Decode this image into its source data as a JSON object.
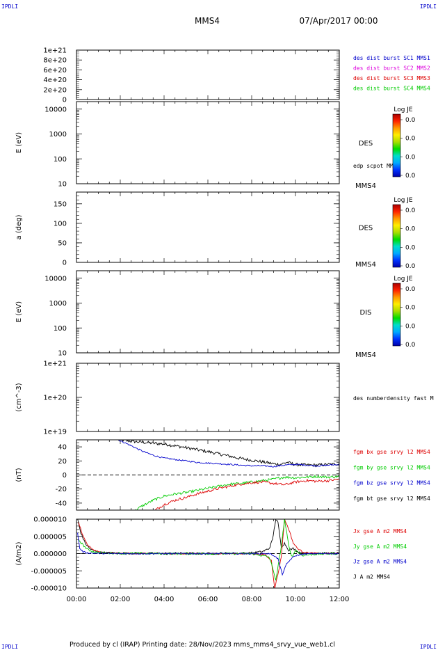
{
  "corner_marks": {
    "tl": "IPDLI",
    "tr": "IPDLI",
    "bl": "IPDLI",
    "br": "IPDLI"
  },
  "header": {
    "spacecraft": "MMS4",
    "date": "07/Apr/2017 00:00"
  },
  "footer": {
    "text": "Produced by cl (IRAP)   Printing date: 28/Nov/2023   mms_mms4_srvy_vue_web1.cl"
  },
  "colors": {
    "black": "#000000",
    "red": "#dd0000",
    "green": "#00cc00",
    "blue": "#0000cc",
    "magenta": "#dd00dd",
    "bg": "#ffffff"
  },
  "time_axis": {
    "start": "00:00",
    "end": "12:00",
    "ticks": [
      "00:00",
      "02:00",
      "04:00",
      "06:00",
      "08:00",
      "10:00",
      "12:00"
    ],
    "tick_hours": [
      0,
      2,
      4,
      6,
      8,
      10,
      12
    ]
  },
  "panel_order": [
    "dist",
    "des",
    "pa",
    "dis",
    "ndens",
    "bfield",
    "current"
  ],
  "colorbar_colors": [
    "#0000aa",
    "#0033ff",
    "#00aaff",
    "#00ddcc",
    "#00dd00",
    "#aadd00",
    "#ffee00",
    "#ff9900",
    "#ff2200",
    "#aa0000"
  ],
  "chart_data": [
    {
      "key": "dist",
      "type": "line",
      "scale": "linear",
      "ylim": [
        0,
        1e+21
      ],
      "ytick_values": [
        1e+21,
        8e+20,
        6e+20,
        4e+20,
        2e+20,
        0
      ],
      "ytick_labels": [
        "1e+21",
        "8e+20",
        "6e+20",
        "4e+20",
        "2e+20",
        "0"
      ],
      "ylabel": "",
      "zero_line": true,
      "legend": [
        {
          "name": "des dist burst SC1 MMS1",
          "color": "#0000cc"
        },
        {
          "name": "des dist burst SC2 MMS2",
          "color": "#dd00dd"
        },
        {
          "name": "des dist burst SC3 MMS3",
          "color": "#dd0000"
        },
        {
          "name": "des dist burst SC4 MMS4",
          "color": "#00cc00"
        }
      ],
      "series": []
    },
    {
      "key": "des",
      "type": "heatmap",
      "scale": "log",
      "ylim": [
        10,
        20000
      ],
      "ytick_values": [
        10000,
        1000,
        100,
        10
      ],
      "ytick_labels": [
        "10000",
        "1000",
        "100",
        "10"
      ],
      "ylabel": "E (eV)",
      "side_label": "DES",
      "side_note": "edp scpot MMS4",
      "sc_label": "MMS4",
      "colorbar": {
        "title": "Log JE",
        "ticks": [
          "0.0",
          "0.0",
          "0.0",
          "0.0"
        ]
      },
      "series": []
    },
    {
      "key": "pa",
      "type": "heatmap",
      "scale": "linear",
      "ylim": [
        0,
        180
      ],
      "ytick_values": [
        150,
        100,
        50,
        0
      ],
      "ytick_labels": [
        "150",
        "100",
        "50",
        "0"
      ],
      "ylabel": "a (deg)",
      "side_label": "DES",
      "sc_label": "MMS4",
      "colorbar": {
        "title": "Log JE",
        "ticks": [
          "0.0",
          "0.0",
          "0.0",
          "0.0"
        ]
      },
      "series": []
    },
    {
      "key": "dis",
      "type": "heatmap",
      "scale": "log",
      "ylim": [
        10,
        20000
      ],
      "ytick_values": [
        10000,
        1000,
        100,
        10
      ],
      "ytick_labels": [
        "10000",
        "1000",
        "100",
        "10"
      ],
      "ylabel": "E (eV)",
      "side_label": "DIS",
      "sc_label": "MMS4",
      "colorbar": {
        "title": "Log JE",
        "ticks": [
          "0.0",
          "0.0",
          "0.0",
          "0.0"
        ]
      },
      "series": []
    },
    {
      "key": "ndens",
      "type": "line",
      "scale": "log",
      "ylim": [
        1e+19,
        1e+21
      ],
      "ytick_values": [
        1e+21,
        1e+20,
        1e+19
      ],
      "ytick_labels": [
        "1e+21",
        "1e+20",
        "1e+19"
      ],
      "ylabel": "(cm^-3)",
      "legend": [
        {
          "name": "des numberdensity fast M",
          "color": "#000000"
        }
      ],
      "series": []
    },
    {
      "key": "bfield",
      "type": "line",
      "scale": "linear",
      "ylim": [
        -50,
        50
      ],
      "ytick_values": [
        40,
        20,
        0,
        -20,
        -40
      ],
      "ytick_labels": [
        "40",
        "20",
        "0",
        "-20",
        "-40"
      ],
      "ylabel": "(nT)",
      "zero_line": true,
      "legend": [
        {
          "name": "fgm bx gse srvy l2 MMS4",
          "color": "#dd0000"
        },
        {
          "name": "fgm by gse srvy l2 MMS4",
          "color": "#00cc00"
        },
        {
          "name": "fgm bz gse srvy l2 MMS4",
          "color": "#0000cc"
        },
        {
          "name": "fgm bt gse srvy l2 MMS4",
          "color": "#000000"
        }
      ],
      "series": [
        {
          "color": "#000000",
          "noise": 2.2,
          "x": [
            1.9,
            2.5,
            3.2,
            4.0,
            4.8,
            5.5,
            6.2,
            6.8,
            7.4,
            7.8,
            8.2,
            8.6,
            9.0,
            9.3,
            9.6,
            10.0,
            10.5,
            11.0,
            11.5,
            12.0
          ],
          "y": [
            50,
            48,
            46,
            44,
            40,
            36,
            32,
            28,
            24,
            22,
            20,
            18,
            16,
            15,
            18,
            15,
            14,
            14,
            15,
            16
          ]
        },
        {
          "color": "#0000cc",
          "noise": 1.0,
          "x": [
            1.9,
            2.2,
            2.6,
            3.0,
            3.5,
            4.0,
            4.5,
            5.0,
            5.5,
            6.0,
            6.5,
            7.0,
            7.5,
            8.0,
            8.5,
            9.0,
            9.5,
            10.0,
            10.5,
            11.0,
            11.5,
            12.0
          ],
          "y": [
            50,
            46,
            40,
            34,
            28,
            24,
            22,
            20,
            18,
            17,
            16,
            15,
            14,
            13,
            13,
            12,
            14,
            15,
            14,
            13,
            14,
            15
          ]
        },
        {
          "color": "#00cc00",
          "noise": 1.8,
          "x": [
            2.7,
            3.0,
            3.5,
            4.0,
            4.5,
            5.0,
            5.5,
            6.0,
            6.5,
            7.0,
            7.5,
            8.0,
            8.5,
            9.0,
            9.5,
            10.0,
            10.5,
            11.0,
            11.5,
            12.0
          ],
          "y": [
            -50,
            -44,
            -36,
            -30,
            -27,
            -25,
            -22,
            -19,
            -16,
            -13,
            -12,
            -10,
            -8,
            -6,
            -3,
            -4,
            -3,
            -2,
            -3,
            -2
          ]
        },
        {
          "color": "#dd0000",
          "noise": 1.8,
          "x": [
            3.6,
            4.0,
            4.5,
            5.0,
            5.5,
            6.0,
            6.5,
            7.0,
            7.5,
            8.0,
            8.5,
            9.0,
            9.5,
            10.0,
            10.5,
            11.0,
            11.5,
            12.0
          ],
          "y": [
            -50,
            -42,
            -36,
            -32,
            -27,
            -23,
            -19,
            -16,
            -13,
            -11,
            -10,
            -12,
            -14,
            -10,
            -8,
            -9,
            -8,
            -6
          ]
        }
      ]
    },
    {
      "key": "current",
      "type": "line",
      "scale": "linear",
      "ylim": [
        -1e-05,
        1e-05
      ],
      "ytick_values": [
        1e-05,
        5e-06,
        0,
        -5e-06,
        -1e-05
      ],
      "ytick_labels": [
        "0.000010",
        "0.000005",
        "0.000000",
        "-0.000005",
        "-0.000010"
      ],
      "ylabel": "(A/m2)",
      "zero_line": true,
      "legend": [
        {
          "name": "Jx gse A m2 MMS4",
          "color": "#dd0000"
        },
        {
          "name": "Jy gse A m2 MMS4",
          "color": "#00cc00"
        },
        {
          "name": "Jz gse A m2 MMS4",
          "color": "#0000cc"
        },
        {
          "name": "J A m2 MMS4",
          "color": "#000000"
        }
      ],
      "series": [
        {
          "color": "#000000",
          "noise": 3e-07,
          "x": [
            0.05,
            0.2,
            0.4,
            0.6,
            0.8,
            1.0,
            1.5,
            2.0,
            4.0,
            6.0,
            7.5,
            8.0,
            8.5,
            8.8,
            8.95,
            9.1,
            9.2,
            9.35,
            9.5,
            9.7,
            9.9,
            10.1,
            10.3,
            10.6,
            11.0,
            12.0
          ],
          "y": [
            1e-05,
            6e-06,
            3e-06,
            1.5e-06,
            8e-07,
            4e-07,
            2e-07,
            1e-07,
            5e-08,
            5e-08,
            1e-07,
            2e-07,
            6e-07,
            1.5e-06,
            4e-06,
            1e-05,
            9e-06,
            2e-06,
            3e-06,
            1e-06,
            1.5e-06,
            6e-07,
            2e-07,
            1e-07,
            1e-07,
            1e-07
          ]
        },
        {
          "color": "#dd0000",
          "noise": 2e-07,
          "x": [
            0.1,
            0.3,
            0.5,
            0.8,
            1.2,
            2.0,
            4.0,
            6.0,
            8.0,
            8.6,
            8.9,
            9.05,
            9.2,
            9.35,
            9.5,
            9.7,
            9.9,
            10.1,
            10.3,
            10.6,
            11.0,
            12.0
          ],
          "y": [
            9e-06,
            5e-06,
            2.5e-06,
            1e-06,
            3e-07,
            1e-07,
            0,
            0,
            0,
            -3e-07,
            -2e-06,
            -1e-05,
            -6e-06,
            -1e-06,
            1e-05,
            7e-06,
            3e-06,
            1.5e-06,
            6e-07,
            2e-07,
            1e-07,
            0
          ]
        },
        {
          "color": "#00cc00",
          "noise": 3e-07,
          "x": [
            0.1,
            0.3,
            0.5,
            0.8,
            1.2,
            2.0,
            4.0,
            6.0,
            8.0,
            8.8,
            9.0,
            9.1,
            9.2,
            9.35,
            9.5,
            9.6,
            9.7,
            9.85,
            10.0,
            10.3,
            10.8,
            11.5,
            12.0
          ],
          "y": [
            4e-06,
            2.5e-06,
            1.2e-06,
            5e-07,
            2e-07,
            1e-07,
            0,
            0,
            0,
            -1e-06,
            -5e-06,
            -8e-06,
            -4e-06,
            2e-06,
            1e-05,
            6e-06,
            2e-06,
            -1e-06,
            1e-06,
            -5e-07,
            -2e-07,
            0,
            0
          ]
        },
        {
          "color": "#0000cc",
          "noise": 2e-07,
          "x": [
            0.05,
            0.15,
            0.3,
            0.5,
            0.8,
            2.0,
            4.0,
            6.0,
            8.0,
            8.8,
            9.0,
            9.2,
            9.4,
            9.6,
            9.8,
            10.0,
            10.3,
            10.8,
            12.0
          ],
          "y": [
            6e-06,
            1.5e-06,
            5e-07,
            2e-07,
            1e-07,
            0,
            0,
            0,
            0,
            0,
            -5e-07,
            -1.5e-06,
            -6e-06,
            -3e-06,
            -1.5e-06,
            -6e-07,
            -2e-07,
            0,
            0
          ]
        }
      ]
    }
  ]
}
